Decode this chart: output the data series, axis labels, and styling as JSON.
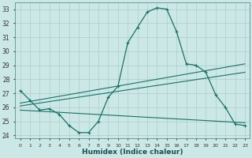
{
  "xlabel": "Humidex (Indice chaleur)",
  "ylabel": "",
  "bg_color": "#cce8e6",
  "grid_color": "#aaccca",
  "line_color": "#1a7068",
  "xlim": [
    -0.5,
    23.5
  ],
  "ylim": [
    23.8,
    33.5
  ],
  "yticks": [
    24,
    25,
    26,
    27,
    28,
    29,
    30,
    31,
    32,
    33
  ],
  "xticks": [
    0,
    1,
    2,
    3,
    4,
    5,
    6,
    7,
    8,
    9,
    10,
    11,
    12,
    13,
    14,
    15,
    16,
    17,
    18,
    19,
    20,
    21,
    22,
    23
  ],
  "line1_x": [
    0,
    1,
    2,
    3,
    4,
    5,
    6,
    7,
    8,
    9,
    10,
    11,
    12,
    13,
    14,
    15,
    16,
    17,
    18,
    19,
    20,
    21,
    22,
    23
  ],
  "line1_y": [
    27.2,
    26.5,
    25.8,
    25.9,
    25.5,
    24.7,
    24.2,
    24.2,
    25.0,
    26.7,
    27.5,
    30.6,
    31.7,
    32.8,
    33.1,
    33.0,
    31.4,
    29.1,
    29.0,
    28.5,
    26.9,
    26.0,
    24.8,
    24.7
  ],
  "line2_x": [
    0,
    23
  ],
  "line2_y": [
    26.3,
    29.1
  ],
  "line3_x": [
    0,
    23
  ],
  "line3_y": [
    26.1,
    28.5
  ],
  "line4_x": [
    0,
    23
  ],
  "line4_y": [
    25.8,
    24.9
  ]
}
